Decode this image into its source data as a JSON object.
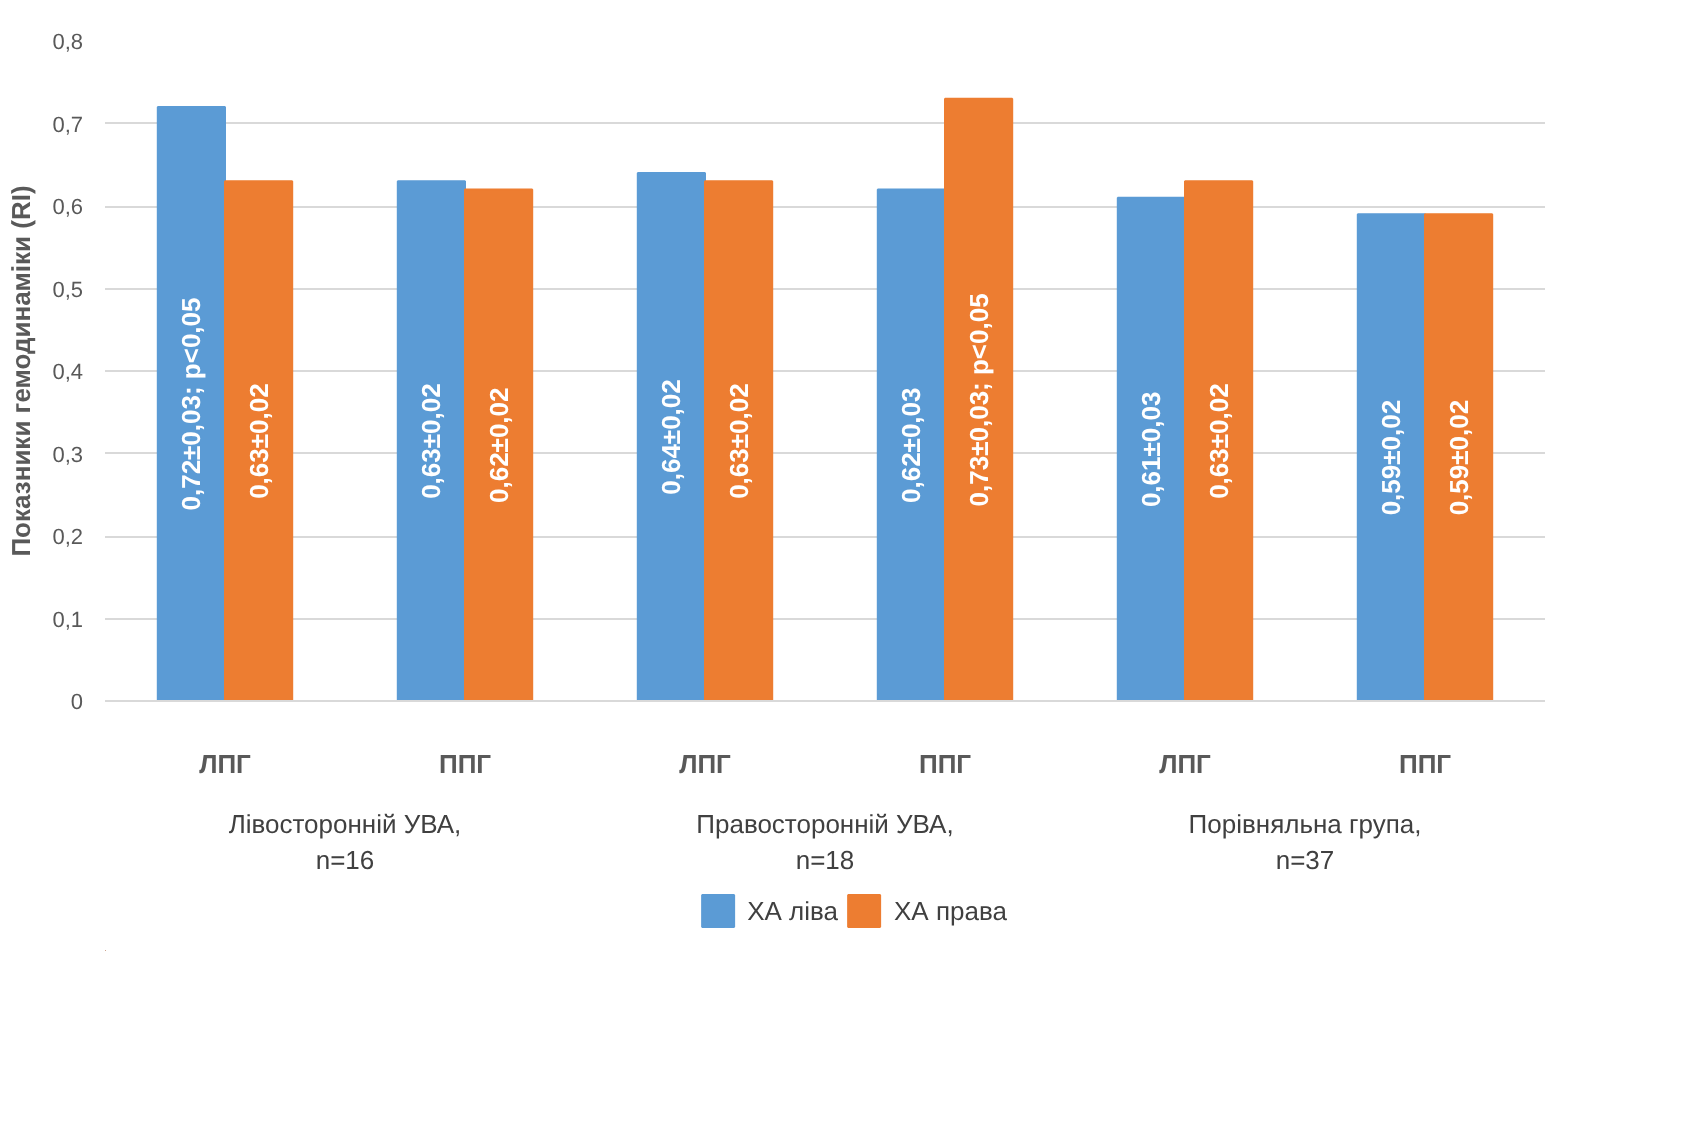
{
  "chart_data": {
    "type": "bar",
    "ylabel": "Показники гемодинаміки (RI)",
    "categories": [
      "ЛПГ",
      "ППГ",
      "ЛПГ",
      "ППГ",
      "ЛПГ",
      "ППГ"
    ],
    "annotations": [
      "Лівосторонній УВА,\nn=16",
      "Правосторонній УВА,\nn=18",
      "Порівняльна група,\nn=37"
    ],
    "series": [
      {
        "name": "ХА ліва",
        "color": "#5b9bd5",
        "values": [
          0.72,
          0.63,
          0.64,
          0.62,
          0.61,
          0.59
        ],
        "value_labels": [
          "0,72±0,03; p<0,05",
          "0,63±0,02",
          "0,64±0,02",
          "0,62±0,03",
          "0,61±0,03",
          "0,59±0,02"
        ]
      },
      {
        "name": "ХА права",
        "color": "#ed7d31",
        "values": [
          0.63,
          0.62,
          0.63,
          0.73,
          0.63,
          0.59
        ],
        "value_labels": [
          "0,63±0,02",
          "0,62±0,02",
          "0,63±0,02",
          "0,73±0,03; p<0,05",
          "0,63±0,02",
          "0,59±0,02"
        ]
      }
    ],
    "ylim": [
      0,
      0.8
    ],
    "yticks": [
      0,
      {
        "value": 0.1,
        "label": "0,1"
      },
      {
        "value": 0.2,
        "label": "0,2"
      },
      {
        "value": 0.3,
        "label": "0,3"
      },
      {
        "value": 0.4,
        "label": "0,4"
      },
      {
        "value": 0.5,
        "label": "0,5"
      },
      {
        "value": 0.6,
        "label": "0,6"
      },
      {
        "value": 0.7,
        "label": "0,7"
      },
      {
        "value": 0.8,
        "label": "0,8"
      }
    ],
    "grid": "y",
    "legend": "bottom"
  }
}
